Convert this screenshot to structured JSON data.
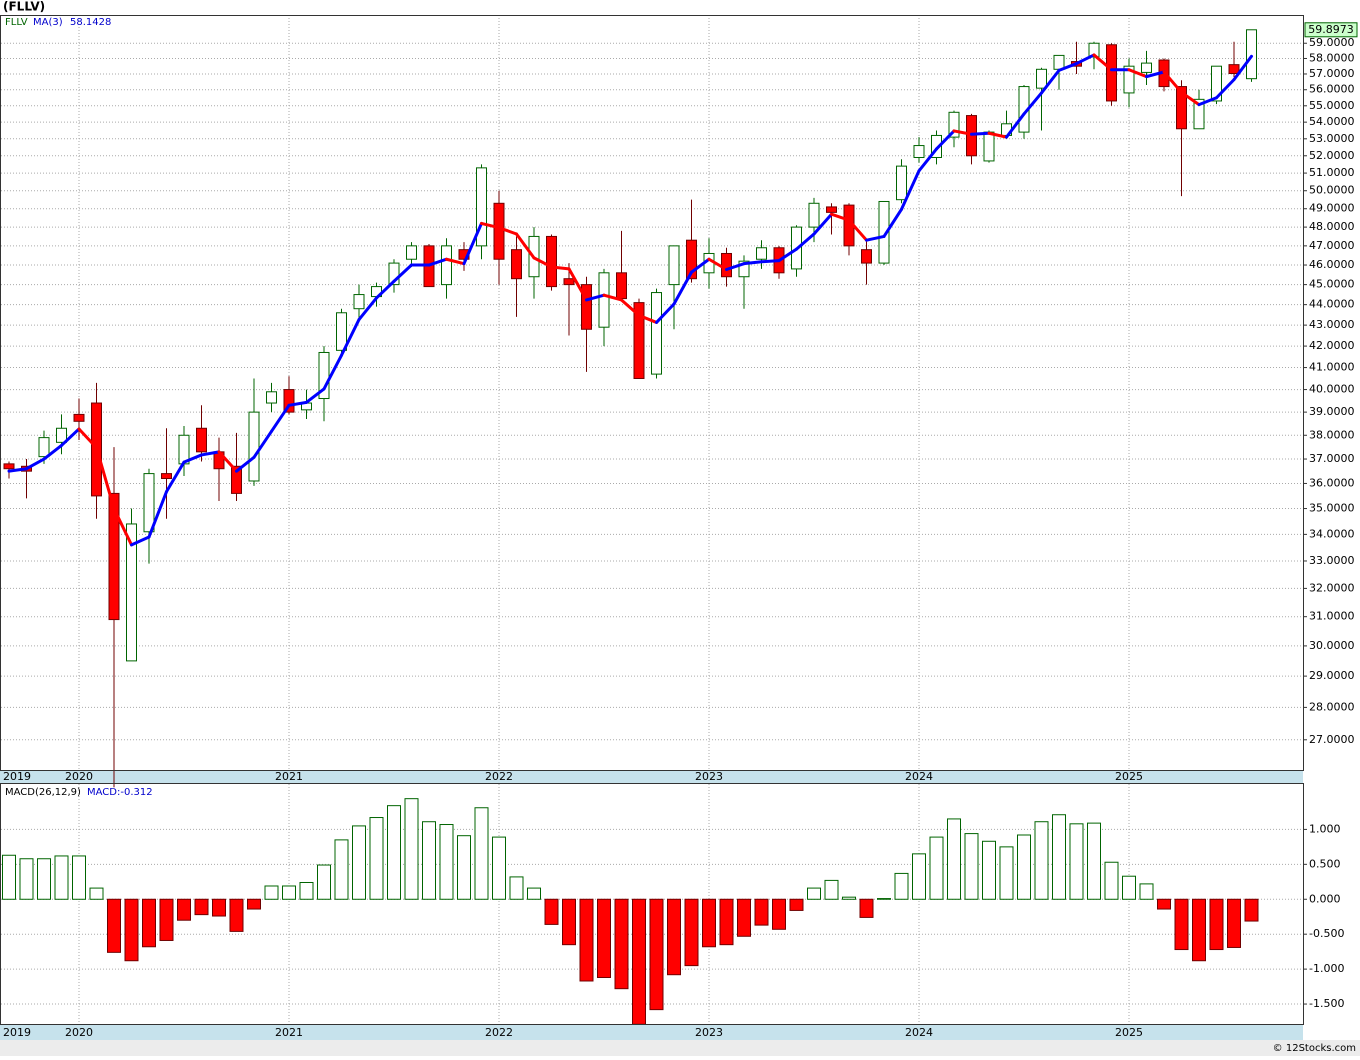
{
  "title": "(FLLV)",
  "footer": "© 12Stocks.com",
  "chart_data": [
    {
      "type": "candlestick",
      "symbol": "FLLV",
      "log_scale": true,
      "grid": true,
      "up_color": "#006400",
      "down_color": "#ff0000",
      "last_label_color": "#ccffcc",
      "categories": [
        "2019",
        null,
        null,
        null,
        "2020",
        null,
        null,
        null,
        null,
        null,
        null,
        null,
        null,
        null,
        null,
        null,
        "2021",
        null,
        null,
        null,
        null,
        null,
        null,
        null,
        null,
        null,
        null,
        null,
        "2022",
        null,
        null,
        null,
        null,
        null,
        null,
        null,
        null,
        null,
        null,
        null,
        "2023",
        null,
        null,
        null,
        null,
        null,
        null,
        null,
        null,
        null,
        null,
        null,
        "2024",
        null,
        null,
        null,
        null,
        null,
        null,
        null,
        null,
        null,
        null,
        null,
        "2025",
        null,
        null,
        null,
        null,
        null,
        null,
        null
      ],
      "open": [
        36.8,
        36.7,
        37.1,
        37.7,
        38.9,
        39.4,
        35.6,
        29.5,
        34.1,
        36.4,
        36.8,
        38.3,
        37.3,
        36.7,
        36.1,
        39.4,
        40.0,
        39.1,
        39.6,
        41.8,
        43.8,
        44.4,
        45.0,
        46.3,
        47.0,
        45.0,
        46.8,
        47.0,
        49.3,
        46.8,
        45.4,
        47.5,
        45.3,
        45.0,
        42.9,
        45.6,
        44.1,
        40.7,
        45.0,
        47.3,
        45.6,
        46.6,
        45.4,
        46.3,
        46.9,
        45.8,
        48.0,
        49.1,
        49.2,
        46.8,
        46.1,
        49.5,
        51.9,
        51.9,
        53.1,
        54.4,
        51.7,
        53.2,
        53.4,
        56.1,
        57.3,
        57.8,
        58.1,
        58.9,
        55.8,
        57.1,
        57.9,
        56.2,
        53.6,
        55.3,
        57.6,
        56.7
      ],
      "high": [
        36.9,
        37.0,
        38.2,
        38.9,
        39.6,
        40.3,
        37.5,
        35.0,
        36.6,
        38.3,
        38.4,
        39.3,
        37.9,
        38.1,
        40.5,
        40.3,
        40.6,
        40.0,
        42.0,
        43.8,
        45.0,
        45.1,
        46.3,
        47.2,
        47.1,
        47.4,
        47.2,
        51.5,
        50.0,
        47.5,
        48.0,
        47.6,
        46.1,
        45.4,
        45.8,
        47.8,
        44.3,
        44.8,
        47.0,
        49.5,
        47.4,
        46.9,
        46.5,
        47.3,
        47.0,
        48.1,
        49.6,
        49.3,
        49.3,
        47.3,
        49.4,
        51.8,
        53.1,
        53.5,
        54.7,
        54.5,
        53.5,
        54.7,
        56.3,
        57.4,
        58.2,
        59.1,
        59.1,
        59.0,
        58.0,
        58.5,
        58.0,
        56.6,
        56.0,
        57.5,
        59.1,
        59.9
      ],
      "low": [
        36.2,
        35.4,
        36.8,
        37.2,
        37.8,
        34.6,
        25.6,
        29.5,
        32.9,
        34.6,
        36.3,
        36.9,
        35.3,
        35.3,
        35.9,
        39.0,
        38.9,
        38.7,
        38.6,
        41.5,
        43.3,
        43.9,
        44.6,
        45.9,
        44.9,
        44.3,
        45.7,
        46.3,
        45.0,
        43.4,
        44.3,
        44.7,
        42.5,
        40.8,
        42.0,
        44.2,
        40.5,
        40.5,
        42.8,
        45.1,
        44.8,
        44.9,
        43.8,
        45.8,
        45.3,
        45.4,
        47.2,
        47.6,
        46.5,
        45.0,
        46.0,
        49.3,
        51.6,
        51.5,
        52.5,
        51.5,
        51.6,
        53.0,
        53.0,
        53.5,
        56.0,
        57.0,
        57.3,
        55.0,
        54.9,
        56.3,
        55.9,
        49.7,
        53.6,
        55.1,
        56.8,
        56.5
      ],
      "close": [
        36.6,
        36.5,
        37.9,
        38.3,
        38.6,
        35.5,
        30.9,
        34.4,
        36.4,
        36.2,
        38.0,
        37.3,
        36.6,
        35.6,
        39.0,
        39.9,
        39.0,
        39.4,
        41.7,
        43.6,
        44.5,
        44.9,
        46.1,
        47.0,
        44.9,
        47.0,
        46.3,
        51.3,
        46.3,
        45.3,
        47.5,
        44.9,
        45.0,
        42.8,
        45.6,
        44.3,
        40.5,
        44.6,
        47.0,
        45.3,
        46.6,
        45.4,
        46.2,
        46.9,
        45.6,
        48.0,
        49.3,
        48.8,
        47.0,
        46.1,
        49.4,
        51.4,
        52.6,
        53.2,
        54.6,
        52.0,
        53.4,
        53.9,
        56.2,
        57.3,
        58.2,
        57.5,
        59.0,
        55.3,
        57.5,
        57.7,
        56.2,
        53.6,
        55.4,
        57.5,
        57.03,
        59.8973
      ],
      "ma": {
        "name": "MA(3)",
        "color": "#0000ff",
        "falling_color": "#ff0000",
        "values": [
          36.5,
          36.6,
          37.0,
          37.57,
          38.27,
          37.47,
          35.0,
          33.6,
          33.9,
          35.67,
          36.87,
          37.17,
          37.3,
          36.5,
          37.07,
          38.17,
          39.3,
          39.43,
          40.03,
          41.57,
          43.27,
          44.33,
          45.17,
          46.0,
          46.0,
          46.3,
          46.07,
          48.2,
          47.97,
          47.63,
          46.37,
          45.9,
          45.8,
          44.23,
          44.47,
          44.23,
          43.47,
          43.13,
          44.03,
          45.63,
          46.3,
          45.77,
          46.07,
          46.17,
          46.23,
          46.83,
          47.63,
          48.7,
          48.37,
          47.3,
          47.5,
          48.97,
          51.13,
          52.4,
          53.47,
          53.27,
          53.33,
          53.1,
          54.5,
          55.8,
          57.23,
          57.67,
          58.23,
          57.27,
          57.27,
          56.83,
          57.13,
          55.83,
          55.07,
          55.5,
          56.64,
          58.1428
        ]
      },
      "ylim": [
        26.1,
        60.9
      ],
      "yticks": [
        {
          "value": 27,
          "label": "27.0000"
        },
        {
          "value": 28,
          "label": "28.0000"
        },
        {
          "value": 29,
          "label": "29.0000"
        },
        {
          "value": 30,
          "label": "30.0000"
        },
        {
          "value": 31,
          "label": "31.0000"
        },
        {
          "value": 32,
          "label": "32.0000"
        },
        {
          "value": 33,
          "label": "33.0000"
        },
        {
          "value": 34,
          "label": "34.0000"
        },
        {
          "value": 35,
          "label": "35.0000"
        },
        {
          "value": 36,
          "label": "36.0000"
        },
        {
          "value": 37,
          "label": "37.0000"
        },
        {
          "value": 38,
          "label": "38.0000"
        },
        {
          "value": 39,
          "label": "39.0000"
        },
        {
          "value": 40,
          "label": "40.0000"
        },
        {
          "value": 41,
          "label": "41.0000"
        },
        {
          "value": 42,
          "label": "42.0000"
        },
        {
          "value": 43,
          "label": "43.0000"
        },
        {
          "value": 44,
          "label": "44.0000"
        },
        {
          "value": 45,
          "label": "45.0000"
        },
        {
          "value": 46,
          "label": "46.0000"
        },
        {
          "value": 47,
          "label": "47.0000"
        },
        {
          "value": 48,
          "label": "48.0000"
        },
        {
          "value": 49,
          "label": "49.0000"
        },
        {
          "value": 50,
          "label": "50.0000"
        },
        {
          "value": 51,
          "label": "51.0000"
        },
        {
          "value": 52,
          "label": "52.0000"
        },
        {
          "value": 53,
          "label": "53.0000"
        },
        {
          "value": 54,
          "label": "54.0000"
        },
        {
          "value": 55,
          "label": "55.0000"
        },
        {
          "value": 56,
          "label": "56.0000"
        },
        {
          "value": 57,
          "label": "57.0000"
        },
        {
          "value": 58,
          "label": "58.0000"
        },
        {
          "value": 59,
          "label": "59.0000"
        }
      ]
    },
    {
      "type": "bar",
      "name": "MACD(26,12,9)",
      "value_label": "MACD:-0.312",
      "grid": true,
      "color": "#006400",
      "negative_color": "#ff0000",
      "categories": [
        "2019",
        null,
        null,
        null,
        "2020",
        null,
        null,
        null,
        null,
        null,
        null,
        null,
        null,
        null,
        null,
        null,
        "2021",
        null,
        null,
        null,
        null,
        null,
        null,
        null,
        null,
        null,
        null,
        null,
        "2022",
        null,
        null,
        null,
        null,
        null,
        null,
        null,
        null,
        null,
        null,
        null,
        "2023",
        null,
        null,
        null,
        null,
        null,
        null,
        null,
        null,
        null,
        null,
        null,
        "2024",
        null,
        null,
        null,
        null,
        null,
        null,
        null,
        null,
        null,
        null,
        null,
        "2025",
        null,
        null,
        null,
        null,
        null,
        null,
        null
      ],
      "values": [
        0.63,
        0.58,
        0.58,
        0.62,
        0.62,
        0.16,
        -0.76,
        -0.88,
        -0.68,
        -0.59,
        -0.3,
        -0.22,
        -0.24,
        -0.46,
        -0.14,
        0.19,
        0.19,
        0.24,
        0.49,
        0.85,
        1.05,
        1.17,
        1.34,
        1.44,
        1.11,
        1.07,
        0.91,
        1.31,
        0.89,
        0.32,
        0.16,
        -0.36,
        -0.65,
        -1.17,
        -1.12,
        -1.28,
        -1.79,
        -1.58,
        -1.08,
        -0.95,
        -0.68,
        -0.65,
        -0.53,
        -0.37,
        -0.43,
        -0.16,
        0.16,
        0.27,
        0.03,
        -0.26,
        0.01,
        0.37,
        0.65,
        0.89,
        1.15,
        0.94,
        0.83,
        0.75,
        0.92,
        1.11,
        1.21,
        1.08,
        1.09,
        0.53,
        0.33,
        0.22,
        -0.14,
        -0.72,
        -0.88,
        -0.72,
        -0.69,
        -0.312
      ],
      "ylim": [
        -1.8,
        1.65
      ],
      "yticks": [
        {
          "value": 1,
          "label": "1.000"
        },
        {
          "value": 0.5,
          "label": "0.500"
        },
        {
          "value": 0,
          "label": "0.000"
        },
        {
          "value": -0.5,
          "label": "-0.500"
        },
        {
          "value": -1,
          "label": "-1.000"
        },
        {
          "value": -1.5,
          "label": "-1.500"
        }
      ]
    }
  ]
}
